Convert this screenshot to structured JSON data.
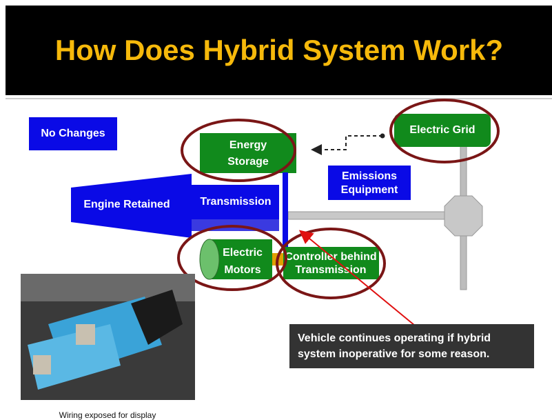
{
  "header": {
    "title": "How Does Hybrid System Work?"
  },
  "diagram": {
    "no_changes": "No Changes",
    "energy_storage": [
      "Energy",
      "Storage"
    ],
    "electric_grid": "Electric Grid",
    "emissions_equipment": [
      "Emissions",
      "Equipment"
    ],
    "engine": "Engine Retained",
    "transmission": "Transmission",
    "electric_motors": [
      "Electric",
      "Motors"
    ],
    "controller": [
      "Controller behind",
      "Transmission"
    ],
    "callout": [
      "Vehicle continues operating if hybrid",
      "system inoperative for some reason."
    ]
  },
  "photo": {
    "caption": "Wiring exposed for display"
  }
}
